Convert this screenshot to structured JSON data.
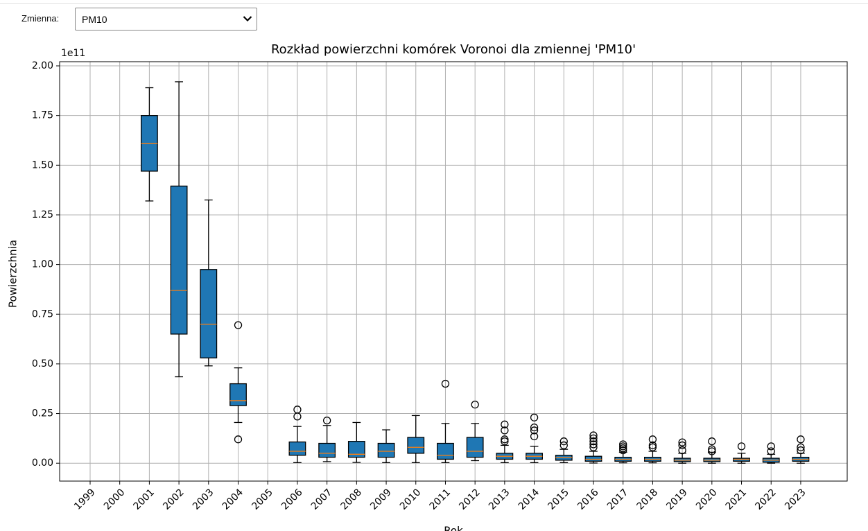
{
  "controls": {
    "label": "Zmienna:",
    "selected": "PM10"
  },
  "chart_data": {
    "type": "boxplot",
    "title": "Rozkład powierzchni komórek Voronoi dla zmiennej 'PM10'",
    "x_label": "Rok",
    "y_label": "Powierzchnia",
    "y_offset_label": "1e11",
    "color": "#1f77b4",
    "median_color": "#ff7f0e",
    "grid": true,
    "categories": [
      "1999",
      "2000",
      "2001",
      "2002",
      "2003",
      "2004",
      "2005",
      "2006",
      "2007",
      "2008",
      "2009",
      "2010",
      "2011",
      "2012",
      "2013",
      "2014",
      "2015",
      "2016",
      "2017",
      "2018",
      "2019",
      "2020",
      "2021",
      "2022",
      "2023"
    ],
    "boxes": [
      null,
      null,
      {
        "whislo": 1.32,
        "q1": 1.47,
        "med": 1.61,
        "q3": 1.75,
        "whishi": 1.89,
        "fliers": []
      },
      {
        "whislo": 0.435,
        "q1": 0.65,
        "med": 0.87,
        "q3": 1.395,
        "whishi": 1.92,
        "fliers": []
      },
      {
        "whislo": 0.49,
        "q1": 0.53,
        "med": 0.7,
        "q3": 0.975,
        "whishi": 1.325,
        "fliers": []
      },
      {
        "whislo": 0.205,
        "q1": 0.29,
        "med": 0.315,
        "q3": 0.4,
        "whishi": 0.48,
        "fliers": [
          0.695,
          0.12
        ]
      },
      null,
      {
        "whislo": 0.003,
        "q1": 0.04,
        "med": 0.06,
        "q3": 0.107,
        "whishi": 0.185,
        "fliers": [
          0.235,
          0.27
        ]
      },
      {
        "whislo": 0.008,
        "q1": 0.03,
        "med": 0.05,
        "q3": 0.1,
        "whishi": 0.19,
        "fliers": [
          0.215
        ]
      },
      {
        "whislo": 0.004,
        "q1": 0.03,
        "med": 0.045,
        "q3": 0.11,
        "whishi": 0.205,
        "fliers": []
      },
      {
        "whislo": 0.003,
        "q1": 0.03,
        "med": 0.06,
        "q3": 0.1,
        "whishi": 0.168,
        "fliers": []
      },
      {
        "whislo": 0.003,
        "q1": 0.05,
        "med": 0.08,
        "q3": 0.13,
        "whishi": 0.24,
        "fliers": []
      },
      {
        "whislo": 0.003,
        "q1": 0.02,
        "med": 0.04,
        "q3": 0.1,
        "whishi": 0.2,
        "fliers": [
          0.4
        ]
      },
      {
        "whislo": 0.013,
        "q1": 0.03,
        "med": 0.06,
        "q3": 0.13,
        "whishi": 0.2,
        "fliers": [
          0.295
        ]
      },
      {
        "whislo": 0.003,
        "q1": 0.02,
        "med": 0.035,
        "q3": 0.05,
        "whishi": 0.09,
        "fliers": [
          0.11,
          0.12,
          0.165,
          0.195
        ]
      },
      {
        "whislo": 0.003,
        "q1": 0.02,
        "med": 0.035,
        "q3": 0.05,
        "whishi": 0.085,
        "fliers": [
          0.135,
          0.165,
          0.18,
          0.23
        ]
      },
      {
        "whislo": 0.003,
        "q1": 0.015,
        "med": 0.03,
        "q3": 0.04,
        "whishi": 0.07,
        "fliers": [
          0.09,
          0.11
        ]
      },
      {
        "whislo": 0.001,
        "q1": 0.01,
        "med": 0.02,
        "q3": 0.035,
        "whishi": 0.06,
        "fliers": [
          0.08,
          0.095,
          0.11,
          0.125,
          0.14
        ]
      },
      {
        "whislo": 0.002,
        "q1": 0.01,
        "med": 0.02,
        "q3": 0.03,
        "whishi": 0.055,
        "fliers": [
          0.065,
          0.075,
          0.085,
          0.095
        ]
      },
      {
        "whislo": 0.002,
        "q1": 0.01,
        "med": 0.02,
        "q3": 0.03,
        "whishi": 0.06,
        "fliers": [
          0.08,
          0.09,
          0.12
        ]
      },
      {
        "whislo": 0.0,
        "q1": 0.008,
        "med": 0.015,
        "q3": 0.025,
        "whishi": 0.05,
        "fliers": [
          0.065,
          0.09,
          0.105
        ]
      },
      {
        "whislo": 0.0,
        "q1": 0.008,
        "med": 0.015,
        "q3": 0.025,
        "whishi": 0.055,
        "fliers": [
          0.06,
          0.07,
          0.11
        ]
      },
      {
        "whislo": 0.0,
        "q1": 0.01,
        "med": 0.02,
        "q3": 0.025,
        "whishi": 0.05,
        "fliers": [
          0.085
        ]
      },
      {
        "whislo": 0.0,
        "q1": 0.005,
        "med": 0.015,
        "q3": 0.025,
        "whishi": 0.045,
        "fliers": [
          0.06,
          0.085
        ]
      },
      {
        "whislo": 0.0,
        "q1": 0.01,
        "med": 0.02,
        "q3": 0.03,
        "whishi": 0.05,
        "fliers": [
          0.065,
          0.08,
          0.12
        ]
      }
    ],
    "ylim": [
      -0.09,
      2.021
    ],
    "yticks": [
      {
        "value": 0,
        "label": "0.00"
      },
      0.25,
      {
        "value": 0.5,
        "label": "0.50"
      },
      0.75,
      {
        "value": 1,
        "label": "1.00"
      },
      1.25,
      {
        "value": 1.5,
        "label": "1.50"
      },
      1.75,
      {
        "value": 2,
        "label": "2.00"
      }
    ]
  }
}
